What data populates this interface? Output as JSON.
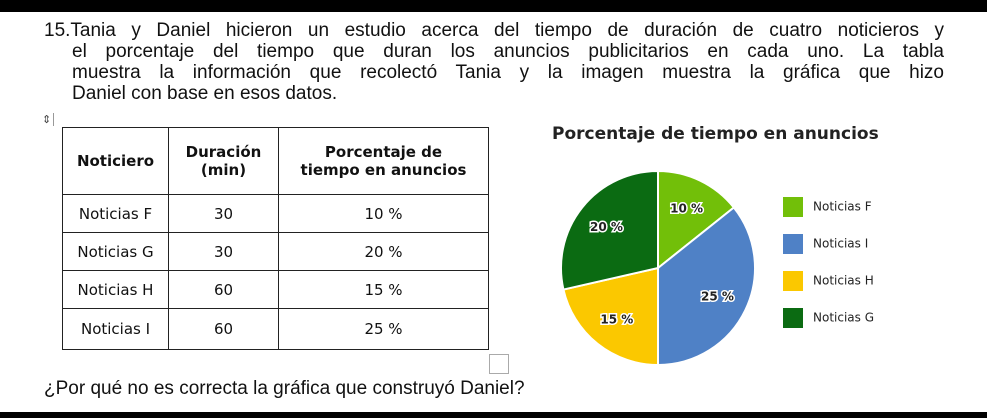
{
  "question": {
    "lines": [
      "15.Tania y Daniel hicieron un estudio acerca del tiempo de duración de cuatro noticieros y",
      "el porcentaje del tiempo que duran los anuncios publicitarios en cada uno. La tabla",
      "muestra la información que recolectó Tania y la imagen muestra la gráfica que hizo",
      "Daniel con base en esos datos."
    ],
    "prompt": "¿Por qué no es correcta la gráfica que construyó Daniel?"
  },
  "table": {
    "headers": [
      "Noticiero",
      "Duración\n(min)",
      "Porcentaje de\ntiempo en anuncios"
    ],
    "rows": [
      [
        "Noticias F",
        "30",
        "10 %"
      ],
      [
        "Noticias G",
        "30",
        "20 %"
      ],
      [
        "Noticias H",
        "60",
        "15 %"
      ],
      [
        "Noticias I",
        "60",
        "25 %"
      ]
    ]
  },
  "chart_data": {
    "type": "pie",
    "title": "Porcentaje de tiempo en anuncios",
    "slices": [
      {
        "name": "Noticias F",
        "value": 10,
        "label": "10 %",
        "color": "#72bf09"
      },
      {
        "name": "Noticias I",
        "value": 25,
        "label": "25 %",
        "color": "#4f81c6"
      },
      {
        "name": "Noticias H",
        "value": 15,
        "label": "15 %",
        "color": "#fbc800"
      },
      {
        "name": "Noticias G",
        "value": 20,
        "label": "20 %",
        "color": "#0b6b12"
      }
    ],
    "legend": "right",
    "legend_order": [
      "Noticias F",
      "Noticias I",
      "Noticias H",
      "Noticias G"
    ]
  }
}
